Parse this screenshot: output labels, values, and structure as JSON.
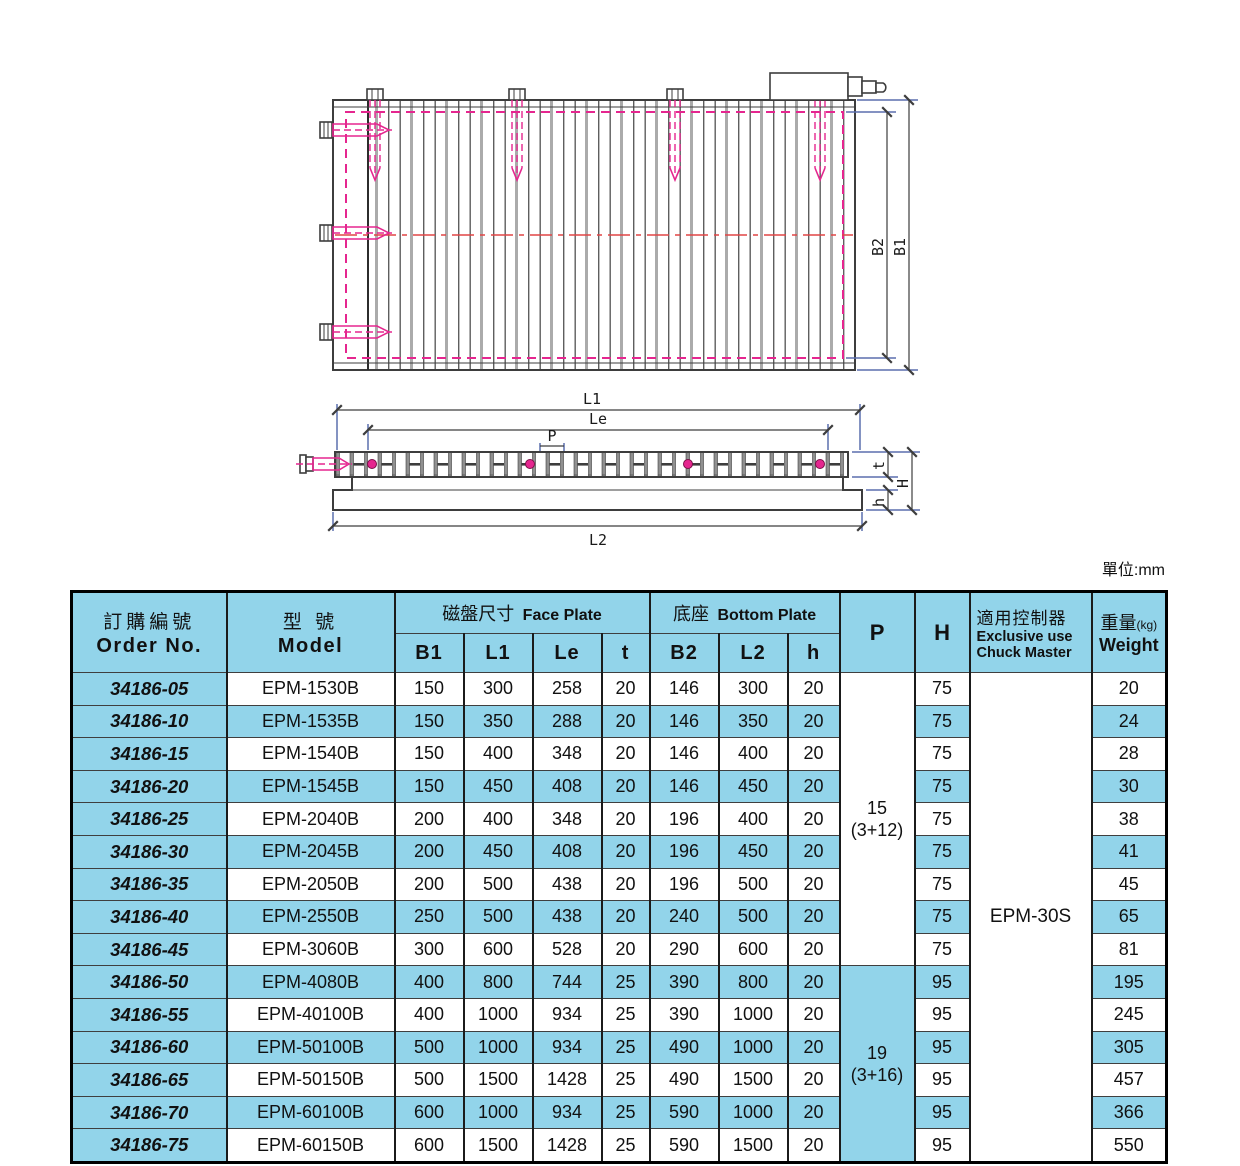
{
  "unit_label": "單位:mm",
  "drawing": {
    "dims": {
      "B1": "B1",
      "B2": "B2",
      "L1": "L1",
      "Le": "Le",
      "P": "P",
      "L2": "L2",
      "t": "t",
      "H": "H",
      "h": "h"
    }
  },
  "table": {
    "header": {
      "order_zh": "訂購編號",
      "order_en": "Order No.",
      "model_zh": "型 號",
      "model_en": "Model",
      "face_zh": "磁盤尺寸",
      "face_en": "Face Plate",
      "bottom_zh": "底座",
      "bottom_en": "Bottom Plate",
      "sub": [
        "B1",
        "L1",
        "Le",
        "t",
        "B2",
        "L2",
        "h"
      ],
      "p": "P",
      "h": "H",
      "chuck_zh": "適用控制器",
      "chuck_en1": "Exclusive use",
      "chuck_en2": "Chuck Master",
      "weight_zh": "重量",
      "weight_kg": "(kg)",
      "weight_en": "Weight"
    },
    "chuck_master": "EPM-30S",
    "p_groups": [
      {
        "line1": "15",
        "line2": "(3+12)",
        "span": 9,
        "blue": false
      },
      {
        "line1": "19",
        "line2": "(3+16)",
        "span": 6,
        "blue": true
      }
    ],
    "rows": [
      {
        "order": "34186-05",
        "model": "EPM-1530B",
        "B1": "150",
        "L1": "300",
        "Le": "258",
        "t": "20",
        "B2": "146",
        "L2": "300",
        "h": "20",
        "H": "75",
        "weight": "20"
      },
      {
        "order": "34186-10",
        "model": "EPM-1535B",
        "B1": "150",
        "L1": "350",
        "Le": "288",
        "t": "20",
        "B2": "146",
        "L2": "350",
        "h": "20",
        "H": "75",
        "weight": "24"
      },
      {
        "order": "34186-15",
        "model": "EPM-1540B",
        "B1": "150",
        "L1": "400",
        "Le": "348",
        "t": "20",
        "B2": "146",
        "L2": "400",
        "h": "20",
        "H": "75",
        "weight": "28"
      },
      {
        "order": "34186-20",
        "model": "EPM-1545B",
        "B1": "150",
        "L1": "450",
        "Le": "408",
        "t": "20",
        "B2": "146",
        "L2": "450",
        "h": "20",
        "H": "75",
        "weight": "30"
      },
      {
        "order": "34186-25",
        "model": "EPM-2040B",
        "B1": "200",
        "L1": "400",
        "Le": "348",
        "t": "20",
        "B2": "196",
        "L2": "400",
        "h": "20",
        "H": "75",
        "weight": "38"
      },
      {
        "order": "34186-30",
        "model": "EPM-2045B",
        "B1": "200",
        "L1": "450",
        "Le": "408",
        "t": "20",
        "B2": "196",
        "L2": "450",
        "h": "20",
        "H": "75",
        "weight": "41"
      },
      {
        "order": "34186-35",
        "model": "EPM-2050B",
        "B1": "200",
        "L1": "500",
        "Le": "438",
        "t": "20",
        "B2": "196",
        "L2": "500",
        "h": "20",
        "H": "75",
        "weight": "45"
      },
      {
        "order": "34186-40",
        "model": "EPM-2550B",
        "B1": "250",
        "L1": "500",
        "Le": "438",
        "t": "20",
        "B2": "240",
        "L2": "500",
        "h": "20",
        "H": "75",
        "weight": "65"
      },
      {
        "order": "34186-45",
        "model": "EPM-3060B",
        "B1": "300",
        "L1": "600",
        "Le": "528",
        "t": "20",
        "B2": "290",
        "L2": "600",
        "h": "20",
        "H": "75",
        "weight": "81"
      },
      {
        "order": "34186-50",
        "model": "EPM-4080B",
        "B1": "400",
        "L1": "800",
        "Le": "744",
        "t": "25",
        "B2": "390",
        "L2": "800",
        "h": "20",
        "H": "95",
        "weight": "195"
      },
      {
        "order": "34186-55",
        "model": "EPM-40100B",
        "B1": "400",
        "L1": "1000",
        "Le": "934",
        "t": "25",
        "B2": "390",
        "L2": "1000",
        "h": "20",
        "H": "95",
        "weight": "245"
      },
      {
        "order": "34186-60",
        "model": "EPM-50100B",
        "B1": "500",
        "L1": "1000",
        "Le": "934",
        "t": "25",
        "B2": "490",
        "L2": "1000",
        "h": "20",
        "H": "95",
        "weight": "305"
      },
      {
        "order": "34186-65",
        "model": "EPM-50150B",
        "B1": "500",
        "L1": "1500",
        "Le": "1428",
        "t": "25",
        "B2": "490",
        "L2": "1500",
        "h": "20",
        "H": "95",
        "weight": "457"
      },
      {
        "order": "34186-70",
        "model": "EPM-60100B",
        "B1": "600",
        "L1": "1000",
        "Le": "934",
        "t": "25",
        "B2": "590",
        "L2": "1000",
        "h": "20",
        "H": "95",
        "weight": "366"
      },
      {
        "order": "34186-75",
        "model": "EPM-60150B",
        "B1": "600",
        "L1": "1500",
        "Le": "1428",
        "t": "25",
        "B2": "590",
        "L2": "1500",
        "h": "20",
        "H": "95",
        "weight": "550"
      }
    ]
  }
}
